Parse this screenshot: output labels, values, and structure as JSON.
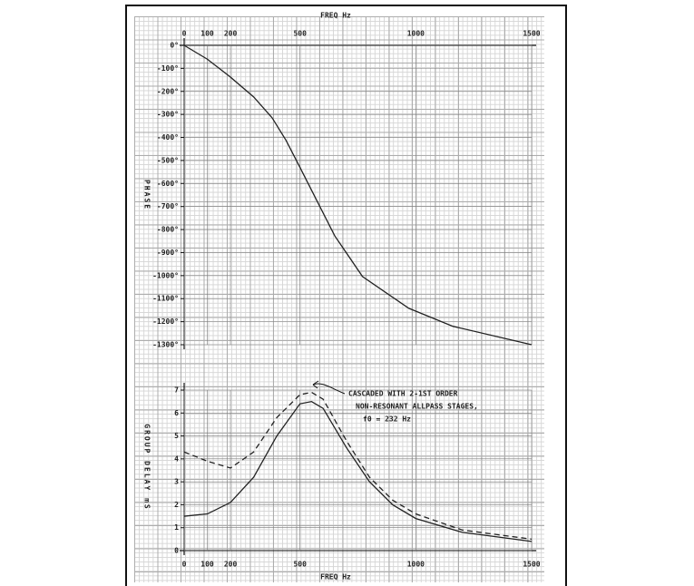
{
  "chart_data": [
    {
      "type": "line",
      "xlabel": "FREQ Hz",
      "ylabel": "PHASE",
      "x": [
        0,
        100,
        200,
        300,
        380,
        440,
        500,
        650,
        770,
        970,
        1160,
        1500
      ],
      "values": [
        0,
        -60,
        -138,
        -224,
        -315,
        -413,
        -530,
        -827,
        -1004,
        -1142,
        -1220,
        -1300
      ],
      "color": "#222222",
      "xlim": [
        0,
        1500
      ],
      "xticks": [
        0,
        100,
        200,
        500,
        1000,
        1500
      ],
      "ylim": [
        -1300,
        0
      ],
      "yticks": [
        {
          "value": 0,
          "label": "0°"
        },
        {
          "value": -100,
          "label": "-100°"
        },
        {
          "value": -200,
          "label": "-200°"
        },
        {
          "value": -300,
          "label": "-300°"
        },
        {
          "value": -400,
          "label": "-400°"
        },
        {
          "value": -500,
          "label": "-500°"
        },
        {
          "value": -600,
          "label": "-600°"
        },
        {
          "value": -700,
          "label": "-700°"
        },
        {
          "value": -800,
          "label": "-800°"
        },
        {
          "value": -900,
          "label": "-900°"
        },
        {
          "value": -1000,
          "label": "-1000°"
        },
        {
          "value": -1100,
          "label": "-1100°"
        },
        {
          "value": -1200,
          "label": "-1200°"
        },
        {
          "value": -1300,
          "label": "-1300°"
        }
      ],
      "grid": true
    },
    {
      "type": "line",
      "xlabel": "FREQ Hz",
      "ylabel": "GROUP DELAY mS",
      "x": [
        0,
        100,
        200,
        300,
        400,
        500,
        550,
        600,
        700,
        800,
        900,
        1000,
        1200,
        1500
      ],
      "series": [
        {
          "color": "#222222",
          "dashed": false,
          "values": [
            1.5,
            1.6,
            2.1,
            3.2,
            5.0,
            6.4,
            6.5,
            6.2,
            4.5,
            3.0,
            2.0,
            1.4,
            0.8,
            0.4
          ]
        },
        {
          "color": "#222222",
          "dashed": true,
          "values": [
            4.3,
            3.9,
            3.6,
            4.3,
            5.8,
            6.8,
            6.9,
            6.6,
            4.8,
            3.2,
            2.2,
            1.6,
            0.9,
            0.5
          ]
        }
      ],
      "annotation": [
        "CASCADED WITH 2-1ST ORDER",
        "NON-RESONANT ALLPASS STAGES,",
        "f0 = 232 Hz"
      ],
      "xlim": [
        0,
        1500
      ],
      "xticks": [
        0,
        100,
        200,
        500,
        1000,
        1500
      ],
      "ylim": [
        0,
        7
      ],
      "yticks": [
        0,
        1,
        2,
        3,
        4,
        5,
        6,
        7
      ],
      "grid": true
    }
  ]
}
